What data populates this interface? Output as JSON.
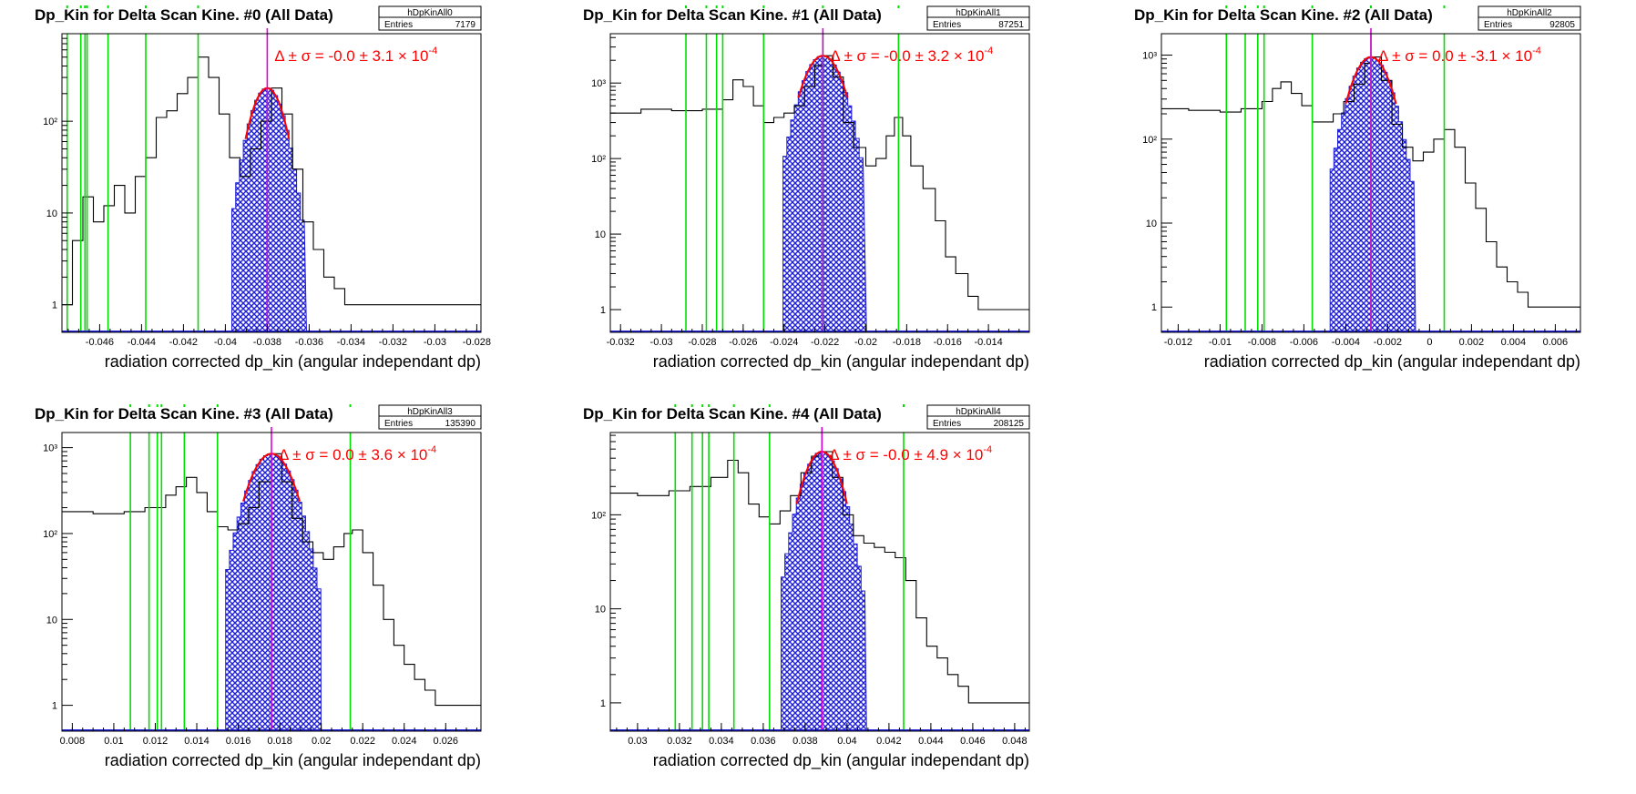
{
  "colors": {
    "histogram": "#000000",
    "selected": "#1f1fd6",
    "fit": "#ff0000",
    "markers": "#00e000",
    "center": "#e000e0",
    "frame": "#000000"
  },
  "common": {
    "xlabel": "radiation corrected dp_kin (angular independant dp)",
    "entries_label": "Entries",
    "delta_sigma_prefix": "Δ ± σ = ",
    "exponent": "-4"
  },
  "chart_data": [
    {
      "type": "histogram",
      "title": "Dp_Kin for Delta Scan Kine. #0 (All Data)",
      "stats_name": "hDpKinAll0",
      "entries": "7179",
      "fit_text": "-0.0 ± 3.1 × 10",
      "xlim": [
        -0.0478,
        -0.0278
      ],
      "ylog": true,
      "ylim": [
        0.5,
        900
      ],
      "yticks": [
        1,
        10,
        100
      ],
      "yticklabels": [
        "1",
        "10",
        "10²"
      ],
      "xticks": [
        -0.046,
        -0.044,
        -0.042,
        -0.04,
        -0.038,
        -0.036,
        -0.034,
        -0.032,
        -0.03,
        -0.028
      ],
      "xticklabels": [
        "-0.046",
        "-0.044",
        "-0.042",
        "-0.04",
        "-0.038",
        "-0.036",
        "-0.034",
        "-0.032",
        "-0.03",
        "-0.028"
      ],
      "center": -0.038,
      "peak": 230,
      "sel_sigma": 0.00065,
      "green_lines": [
        -0.04755,
        -0.0469,
        -0.0467,
        -0.0466,
        -0.0456,
        -0.0438,
        -0.0413
      ],
      "hist_points": [
        [
          -0.0478,
          1
        ],
        [
          -0.0473,
          5
        ],
        [
          -0.0468,
          15
        ],
        [
          -0.0463,
          8
        ],
        [
          -0.0458,
          12
        ],
        [
          -0.0453,
          20
        ],
        [
          -0.0448,
          10
        ],
        [
          -0.0443,
          25
        ],
        [
          -0.0438,
          40
        ],
        [
          -0.0433,
          110
        ],
        [
          -0.0428,
          130
        ],
        [
          -0.0423,
          200
        ],
        [
          -0.0418,
          300
        ],
        [
          -0.0413,
          500
        ],
        [
          -0.0408,
          300
        ],
        [
          -0.0403,
          120
        ],
        [
          -0.0398,
          40
        ],
        [
          -0.0393,
          25
        ],
        [
          -0.0388,
          50
        ],
        [
          -0.0383,
          100
        ],
        [
          -0.0378,
          230
        ],
        [
          -0.0373,
          120
        ],
        [
          -0.0368,
          30
        ],
        [
          -0.0363,
          8
        ],
        [
          -0.0358,
          4
        ],
        [
          -0.0353,
          2
        ],
        [
          -0.0348,
          1.5
        ],
        [
          -0.0343,
          1
        ],
        [
          -0.0333,
          1
        ],
        [
          -0.0323,
          1
        ],
        [
          -0.0313,
          1
        ],
        [
          -0.0303,
          1
        ],
        [
          -0.0293,
          1
        ]
      ]
    },
    {
      "type": "histogram",
      "title": "Dp_Kin for Delta Scan Kine. #1 (All Data)",
      "stats_name": "hDpKinAll1",
      "entries": "87251",
      "fit_text": "-0.0 ± 3.2 × 10",
      "xlim": [
        -0.0325,
        -0.012
      ],
      "ylog": true,
      "ylim": [
        0.5,
        4500
      ],
      "yticks": [
        1,
        10,
        100,
        1000
      ],
      "yticklabels": [
        "1",
        "10",
        "10²",
        "10³"
      ],
      "xticks": [
        -0.032,
        -0.03,
        -0.028,
        -0.026,
        -0.024,
        -0.022,
        -0.02,
        -0.018,
        -0.016,
        -0.014
      ],
      "xticklabels": [
        "-0.032",
        "-0.03",
        "-0.028",
        "-0.026",
        "-0.024",
        "-0.022",
        "-0.02",
        "-0.018",
        "-0.016",
        "-0.014"
      ],
      "center": -0.0221,
      "peak": 2300,
      "sel_sigma": 0.00075,
      "green_lines": [
        -0.0288,
        -0.0278,
        -0.0273,
        -0.027,
        -0.025,
        -0.0221,
        -0.0184
      ],
      "hist_points": [
        [
          -0.0325,
          400
        ],
        [
          -0.031,
          450
        ],
        [
          -0.0295,
          430
        ],
        [
          -0.028,
          450
        ],
        [
          -0.027,
          600
        ],
        [
          -0.0265,
          1100
        ],
        [
          -0.026,
          900
        ],
        [
          -0.0255,
          500
        ],
        [
          -0.025,
          300
        ],
        [
          -0.0245,
          350
        ],
        [
          -0.024,
          400
        ],
        [
          -0.0235,
          500
        ],
        [
          -0.023,
          900
        ],
        [
          -0.0225,
          1700
        ],
        [
          -0.0221,
          2300
        ],
        [
          -0.0216,
          1200
        ],
        [
          -0.0211,
          300
        ],
        [
          -0.0206,
          140
        ],
        [
          -0.02,
          80
        ],
        [
          -0.0195,
          100
        ],
        [
          -0.019,
          200
        ],
        [
          -0.0186,
          350
        ],
        [
          -0.0182,
          200
        ],
        [
          -0.0178,
          80
        ],
        [
          -0.0172,
          40
        ],
        [
          -0.0166,
          15
        ],
        [
          -0.0161,
          5
        ],
        [
          -0.0156,
          3
        ],
        [
          -0.015,
          1.5
        ],
        [
          -0.0145,
          1
        ],
        [
          -0.0135,
          1
        ],
        [
          -0.0125,
          1
        ]
      ]
    },
    {
      "type": "histogram",
      "title": "Dp_Kin for Delta Scan Kine. #2 (All Data)",
      "stats_name": "hDpKinAll2",
      "entries": "92805",
      "fit_text": "0.0 ± -3.1 × 10",
      "xlim": [
        -0.0128,
        0.0072
      ],
      "ylog": true,
      "ylim": [
        0.5,
        1800
      ],
      "yticks": [
        1,
        10,
        100,
        1000
      ],
      "yticklabels": [
        "1",
        "10",
        "10²",
        "10³"
      ],
      "xticks": [
        -0.012,
        -0.01,
        -0.008,
        -0.006,
        -0.004,
        -0.002,
        0,
        0.002,
        0.004,
        0.006
      ],
      "xticklabels": [
        "-0.012",
        "-0.01",
        "-0.008",
        "-0.006",
        "-0.004",
        "-0.002",
        "0",
        "0.002",
        "0.004",
        "0.006"
      ],
      "center": -0.0028,
      "peak": 950,
      "sel_sigma": 0.00075,
      "green_lines": [
        -0.0097,
        -0.0088,
        -0.0082,
        -0.0079,
        -0.0056,
        -0.0028,
        0.0007
      ],
      "hist_points": [
        [
          -0.0128,
          230
        ],
        [
          -0.0115,
          220
        ],
        [
          -0.01,
          210
        ],
        [
          -0.009,
          230
        ],
        [
          -0.008,
          280
        ],
        [
          -0.0075,
          400
        ],
        [
          -0.0071,
          480
        ],
        [
          -0.0066,
          350
        ],
        [
          -0.0061,
          250
        ],
        [
          -0.0056,
          160
        ],
        [
          -0.0051,
          160
        ],
        [
          -0.0046,
          200
        ],
        [
          -0.0041,
          280
        ],
        [
          -0.0036,
          450
        ],
        [
          -0.0031,
          800
        ],
        [
          -0.0028,
          950
        ],
        [
          -0.0023,
          500
        ],
        [
          -0.0018,
          150
        ],
        [
          -0.0013,
          80
        ],
        [
          -0.0008,
          55
        ],
        [
          -0.0003,
          70
        ],
        [
          0.0002,
          100
        ],
        [
          0.0007,
          130
        ],
        [
          0.0012,
          80
        ],
        [
          0.0017,
          30
        ],
        [
          0.0022,
          15
        ],
        [
          0.0027,
          6
        ],
        [
          0.0032,
          3
        ],
        [
          0.0037,
          2
        ],
        [
          0.0042,
          1.5
        ],
        [
          0.0047,
          1
        ],
        [
          0.0057,
          1
        ]
      ]
    },
    {
      "type": "histogram",
      "title": "Dp_Kin for Delta Scan Kine. #3 (All Data)",
      "stats_name": "hDpKinAll3",
      "entries": "135390",
      "fit_text": "0.0 ± 3.6 × 10",
      "xlim": [
        0.0075,
        0.0277
      ],
      "ylog": true,
      "ylim": [
        0.5,
        1500
      ],
      "yticks": [
        1,
        10,
        100,
        1000
      ],
      "yticklabels": [
        "1",
        "10",
        "10²",
        "10³"
      ],
      "xticks": [
        0.008,
        0.01,
        0.012,
        0.014,
        0.016,
        0.018,
        0.02,
        0.022,
        0.024,
        0.026
      ],
      "xticklabels": [
        "0.008",
        "0.01",
        "0.012",
        "0.014",
        "0.016",
        "0.018",
        "0.02",
        "0.022",
        "0.024",
        "0.026"
      ],
      "center": 0.0176,
      "peak": 850,
      "sel_sigma": 0.00085,
      "green_lines": [
        0.0108,
        0.0117,
        0.0121,
        0.0123,
        0.0134,
        0.015,
        0.0214
      ],
      "hist_points": [
        [
          0.0075,
          180
        ],
        [
          0.009,
          170
        ],
        [
          0.0105,
          180
        ],
        [
          0.0115,
          200
        ],
        [
          0.0125,
          280
        ],
        [
          0.013,
          350
        ],
        [
          0.0135,
          450
        ],
        [
          0.014,
          300
        ],
        [
          0.0145,
          180
        ],
        [
          0.015,
          120
        ],
        [
          0.0155,
          110
        ],
        [
          0.016,
          130
        ],
        [
          0.0165,
          200
        ],
        [
          0.017,
          400
        ],
        [
          0.0176,
          850
        ],
        [
          0.0181,
          400
        ],
        [
          0.0186,
          150
        ],
        [
          0.0191,
          80
        ],
        [
          0.0196,
          60
        ],
        [
          0.0201,
          50
        ],
        [
          0.0206,
          70
        ],
        [
          0.0211,
          100
        ],
        [
          0.0215,
          110
        ],
        [
          0.022,
          60
        ],
        [
          0.0225,
          25
        ],
        [
          0.023,
          10
        ],
        [
          0.0235,
          5
        ],
        [
          0.024,
          3
        ],
        [
          0.0245,
          2
        ],
        [
          0.025,
          1.5
        ],
        [
          0.0255,
          1
        ],
        [
          0.0265,
          1
        ]
      ]
    },
    {
      "type": "histogram",
      "title": "Dp_Kin for Delta Scan Kine. #4 (All Data)",
      "stats_name": "hDpKinAll4",
      "entries": "208125",
      "fit_text": "-0.0 ± 4.9 × 10",
      "xlim": [
        0.0287,
        0.0487
      ],
      "ylog": true,
      "ylim": [
        0.5,
        750
      ],
      "yticks": [
        1,
        10,
        100
      ],
      "yticklabels": [
        "1",
        "10",
        "10²"
      ],
      "xticks": [
        0.03,
        0.032,
        0.034,
        0.036,
        0.038,
        0.04,
        0.042,
        0.044,
        0.046,
        0.048
      ],
      "xticklabels": [
        "0.03",
        "0.032",
        "0.034",
        "0.036",
        "0.038",
        "0.04",
        "0.042",
        "0.044",
        "0.046",
        "0.048"
      ],
      "center": 0.0388,
      "peak": 470,
      "sel_sigma": 0.00075,
      "green_lines": [
        0.0318,
        0.0326,
        0.0331,
        0.0334,
        0.0346,
        0.0363,
        0.0427
      ],
      "hist_points": [
        [
          0.0287,
          170
        ],
        [
          0.03,
          160
        ],
        [
          0.0315,
          180
        ],
        [
          0.0325,
          200
        ],
        [
          0.0335,
          250
        ],
        [
          0.0343,
          380
        ],
        [
          0.0348,
          280
        ],
        [
          0.0353,
          130
        ],
        [
          0.0358,
          95
        ],
        [
          0.0363,
          80
        ],
        [
          0.0368,
          110
        ],
        [
          0.0373,
          160
        ],
        [
          0.0378,
          280
        ],
        [
          0.0383,
          420
        ],
        [
          0.0388,
          470
        ],
        [
          0.0393,
          250
        ],
        [
          0.0398,
          100
        ],
        [
          0.0403,
          60
        ],
        [
          0.0408,
          50
        ],
        [
          0.0413,
          45
        ],
        [
          0.0418,
          40
        ],
        [
          0.0423,
          35
        ],
        [
          0.0428,
          20
        ],
        [
          0.0433,
          8
        ],
        [
          0.0438,
          4
        ],
        [
          0.0443,
          3
        ],
        [
          0.0448,
          2
        ],
        [
          0.0453,
          1.5
        ],
        [
          0.0458,
          1
        ],
        [
          0.047,
          1
        ]
      ]
    }
  ]
}
